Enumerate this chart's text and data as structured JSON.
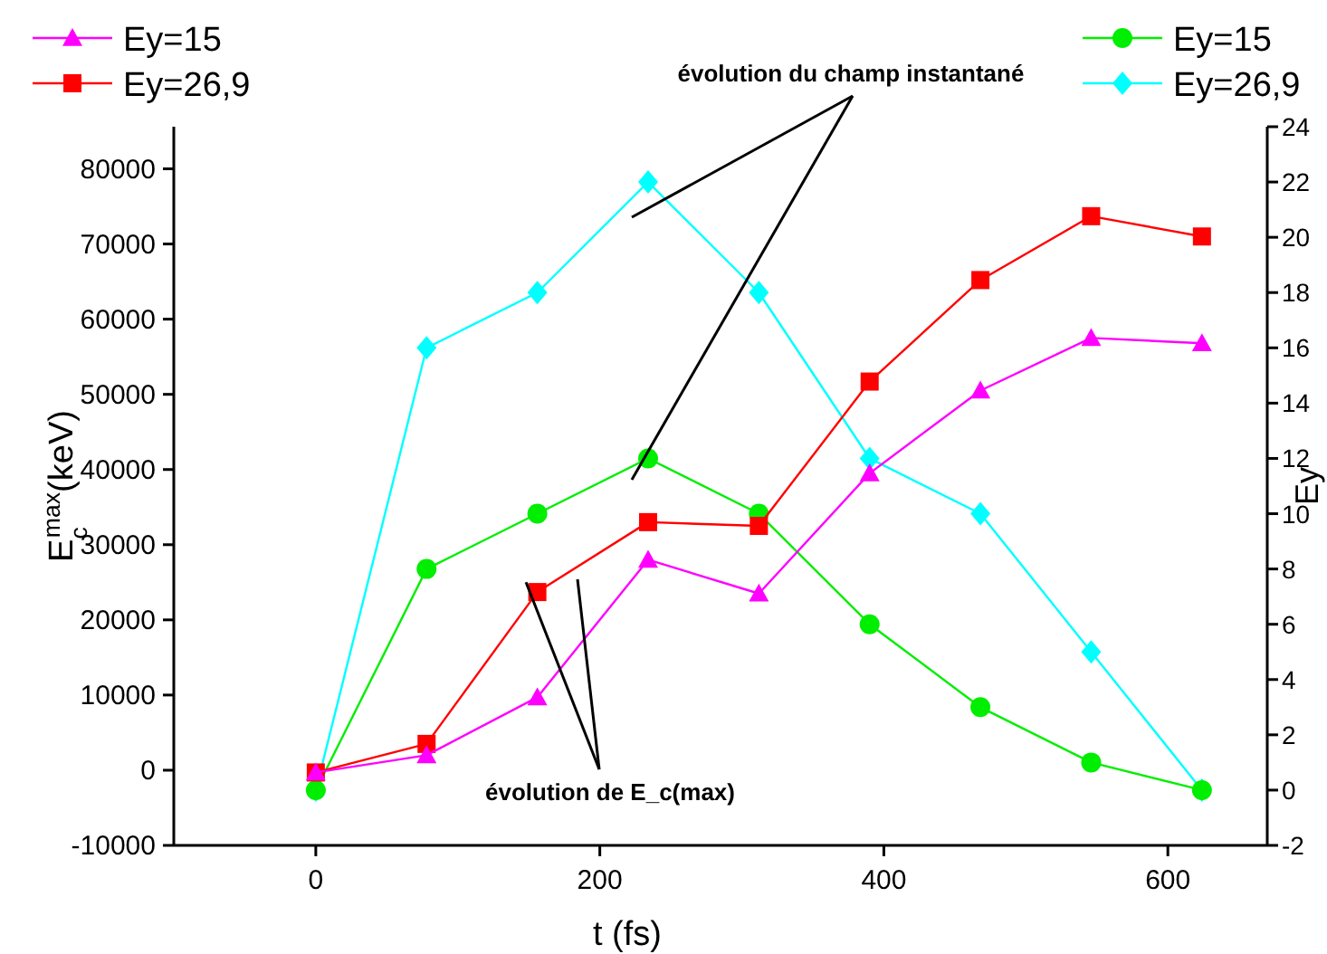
{
  "chart_data": {
    "type": "line",
    "xlabel": "t (fs)",
    "ylabel": "E$_{c}$$^{max}$(keV)",
    "y2label": "Ey",
    "x": [
      0,
      78,
      156,
      234,
      312,
      390,
      468,
      546,
      624
    ],
    "series": [
      {
        "name": "Ey=15",
        "color": "#ff00ff",
        "marker": "triangle",
        "values": [
          -300,
          2000,
          9700,
          28000,
          23500,
          39500,
          50500,
          57500,
          56800
        ]
      },
      {
        "name": "Ey=26,9",
        "color": "#ff0000",
        "marker": "square",
        "values": [
          -300,
          3500,
          23700,
          33000,
          32500,
          51700,
          65200,
          73700,
          71000
        ]
      },
      {
        "name": "Ey=15",
        "color": "#00ee00",
        "marker": "circle",
        "axis": "y2",
        "values": [
          0,
          8,
          10,
          12,
          10,
          6,
          3,
          1,
          0
        ]
      },
      {
        "name": "Ey=26,9",
        "color": "#00ffff",
        "marker": "diamond",
        "axis": "y2",
        "values": [
          0,
          16,
          18,
          22,
          18,
          12,
          10,
          5,
          0
        ]
      }
    ],
    "xlim": [
      -100,
      670
    ],
    "xticks": [
      0,
      200,
      400,
      600
    ],
    "ylim": [
      -10000,
      85600
    ],
    "yticks": [
      -10000,
      0,
      10000,
      20000,
      30000,
      40000,
      50000,
      60000,
      70000,
      80000
    ],
    "y2lim": [
      -2,
      24
    ],
    "y2ticks": [
      -2,
      0,
      2,
      4,
      6,
      8,
      10,
      12,
      14,
      16,
      18,
      20,
      22,
      24
    ],
    "grid": false,
    "legend": "top",
    "annotations": [
      "évolution du champ instantané",
      {
        "text": "évolution de E_c(max)",
        "x": 148,
        "y": 25000
      }
    ]
  }
}
